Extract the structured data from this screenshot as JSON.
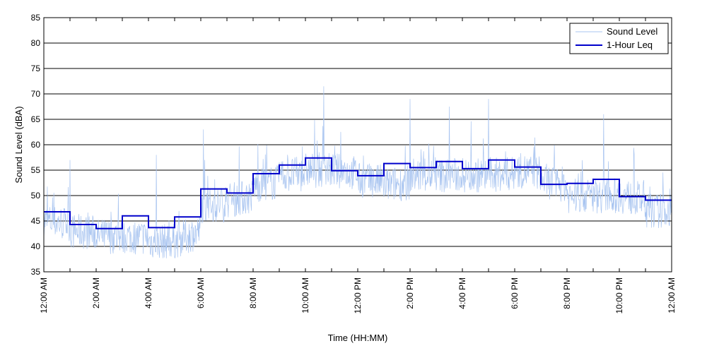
{
  "chart_data": {
    "type": "line",
    "title": "",
    "xlabel": "Time (HH:MM)",
    "ylabel": "Sound Level (dBA)",
    "ylim": [
      35,
      85
    ],
    "yticks": [
      "35",
      "40",
      "45",
      "50",
      "55",
      "60",
      "65",
      "70",
      "75",
      "80",
      "85"
    ],
    "xlim_hours": [
      0,
      24
    ],
    "xtick_labels": [
      "12:00 AM",
      "2:00 AM",
      "4:00 AM",
      "6:00 AM",
      "8:00 AM",
      "10:00 AM",
      "12:00 PM",
      "2:00 PM",
      "4:00 PM",
      "6:00 PM",
      "8:00 PM",
      "10:00 PM",
      "12:00 AM"
    ],
    "grid": "horizontal",
    "legend_position": "top-right",
    "series": [
      {
        "name": "Sound Level",
        "style": "thin line",
        "color": "#a8c4f0",
        "hourly_typical_levels": [
          45,
          43,
          42,
          42,
          41,
          41,
          48,
          49,
          52,
          54,
          55,
          55,
          53,
          52,
          54,
          54,
          54,
          54,
          55,
          53,
          50,
          50,
          50,
          47
        ],
        "peaks": [
          {
            "time_hours": 1.0,
            "value": 57
          },
          {
            "time_hours": 4.3,
            "value": 58
          },
          {
            "time_hours": 6.1,
            "value": 63
          },
          {
            "time_hours": 10.7,
            "value": 71.5
          },
          {
            "time_hours": 14.0,
            "value": 69
          },
          {
            "time_hours": 15.5,
            "value": 67.5
          },
          {
            "time_hours": 17.0,
            "value": 69
          },
          {
            "time_hours": 21.4,
            "value": 66
          }
        ]
      },
      {
        "name": "1-Hour Leq",
        "style": "step",
        "color": "#0000cc",
        "hour_start": [
          0,
          1,
          2,
          3,
          4,
          5,
          6,
          7,
          8,
          9,
          10,
          11,
          12,
          13,
          14,
          15,
          16,
          17,
          18,
          19,
          20,
          21,
          22,
          23
        ],
        "values": [
          46.8,
          44.3,
          43.5,
          46.0,
          43.7,
          45.8,
          51.3,
          50.5,
          54.3,
          56.0,
          57.4,
          54.9,
          53.9,
          56.3,
          55.5,
          56.7,
          55.3,
          57.0,
          55.6,
          52.2,
          52.4,
          53.2,
          49.8,
          49.1
        ]
      }
    ]
  }
}
